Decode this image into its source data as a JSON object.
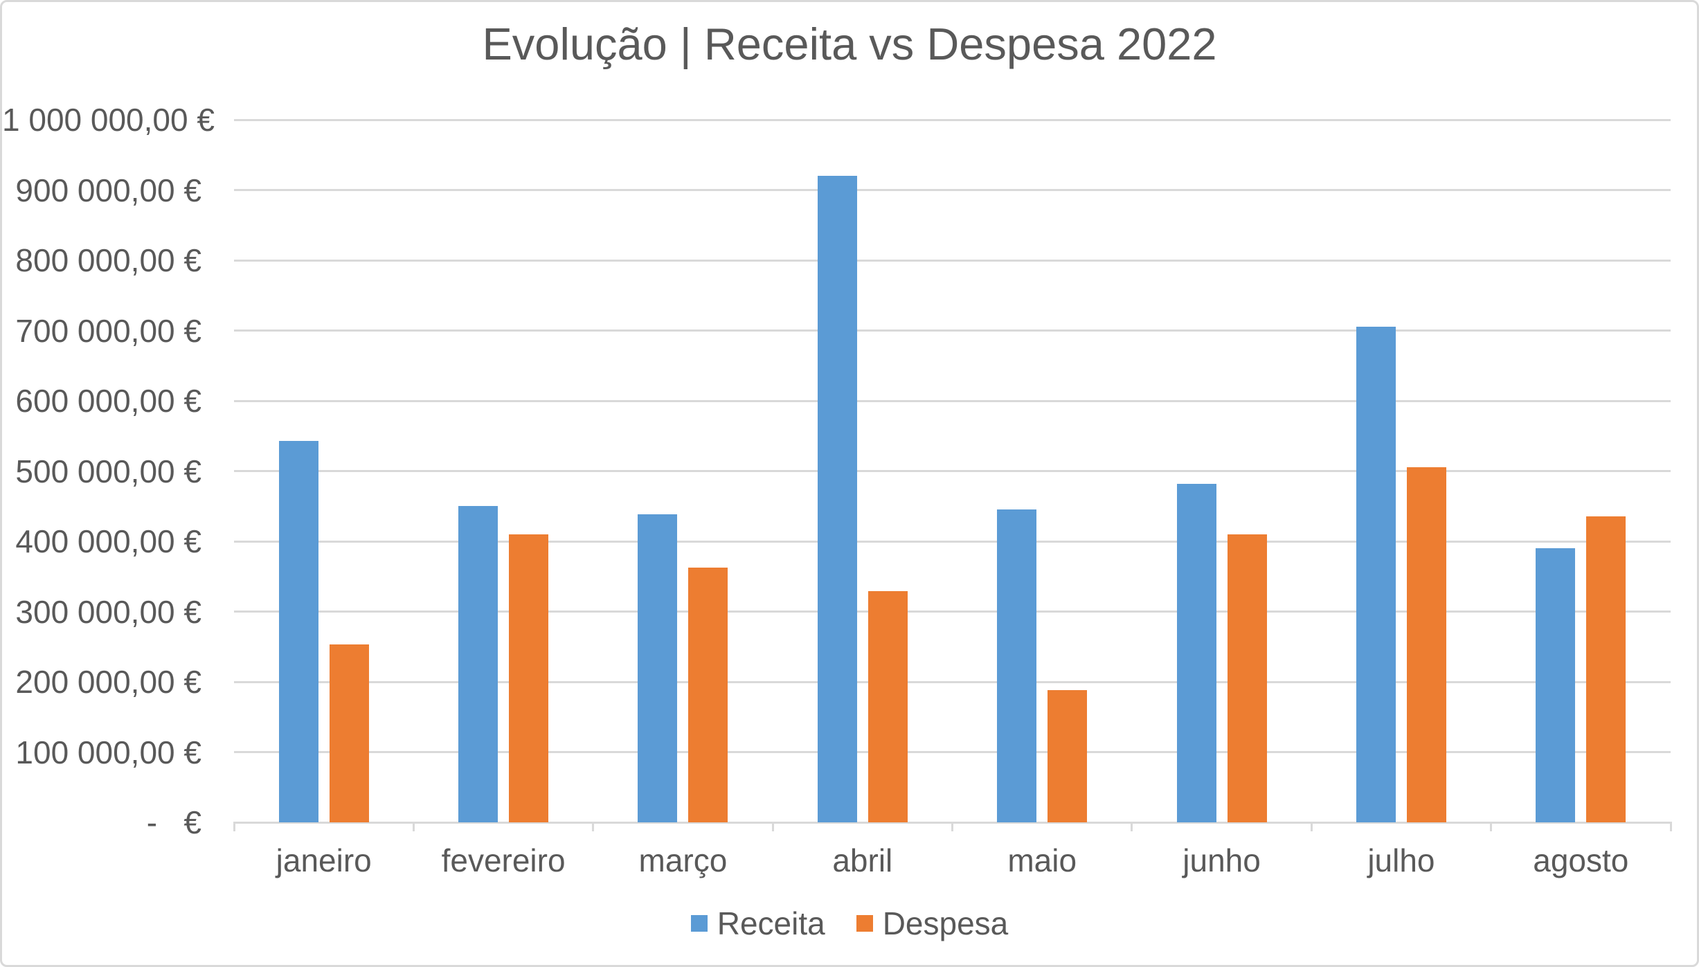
{
  "chart_data": {
    "type": "bar",
    "title": "Evolução | Receita vs Despesa 2022",
    "categories": [
      "janeiro",
      "fevereiro",
      "março",
      "abril",
      "maio",
      "junho",
      "julho",
      "agosto"
    ],
    "series": [
      {
        "name": "Receita",
        "color": "#5B9BD5",
        "values": [
          543000,
          450000,
          438000,
          920000,
          445000,
          482000,
          705000,
          390000
        ]
      },
      {
        "name": "Despesa",
        "color": "#ED7D31",
        "values": [
          253000,
          410000,
          363000,
          329000,
          188000,
          410000,
          505000,
          435000
        ]
      }
    ],
    "y_axis": {
      "min": 0,
      "max": 1000000,
      "step": 100000,
      "tick_labels": [
        "-   €",
        "100 000,00 €",
        "200 000,00 €",
        "300 000,00 €",
        "400 000,00 €",
        "500 000,00 €",
        "600 000,00 €",
        "700 000,00 €",
        "800 000,00 €",
        "900 000,00 €",
        "1 000 000,00 €"
      ]
    },
    "grid": true,
    "legend_position": "bottom"
  },
  "colors": {
    "text": "#595959",
    "gridline": "#D9D9D9",
    "border": "#D9D9D9",
    "background": "#FFFFFF"
  }
}
